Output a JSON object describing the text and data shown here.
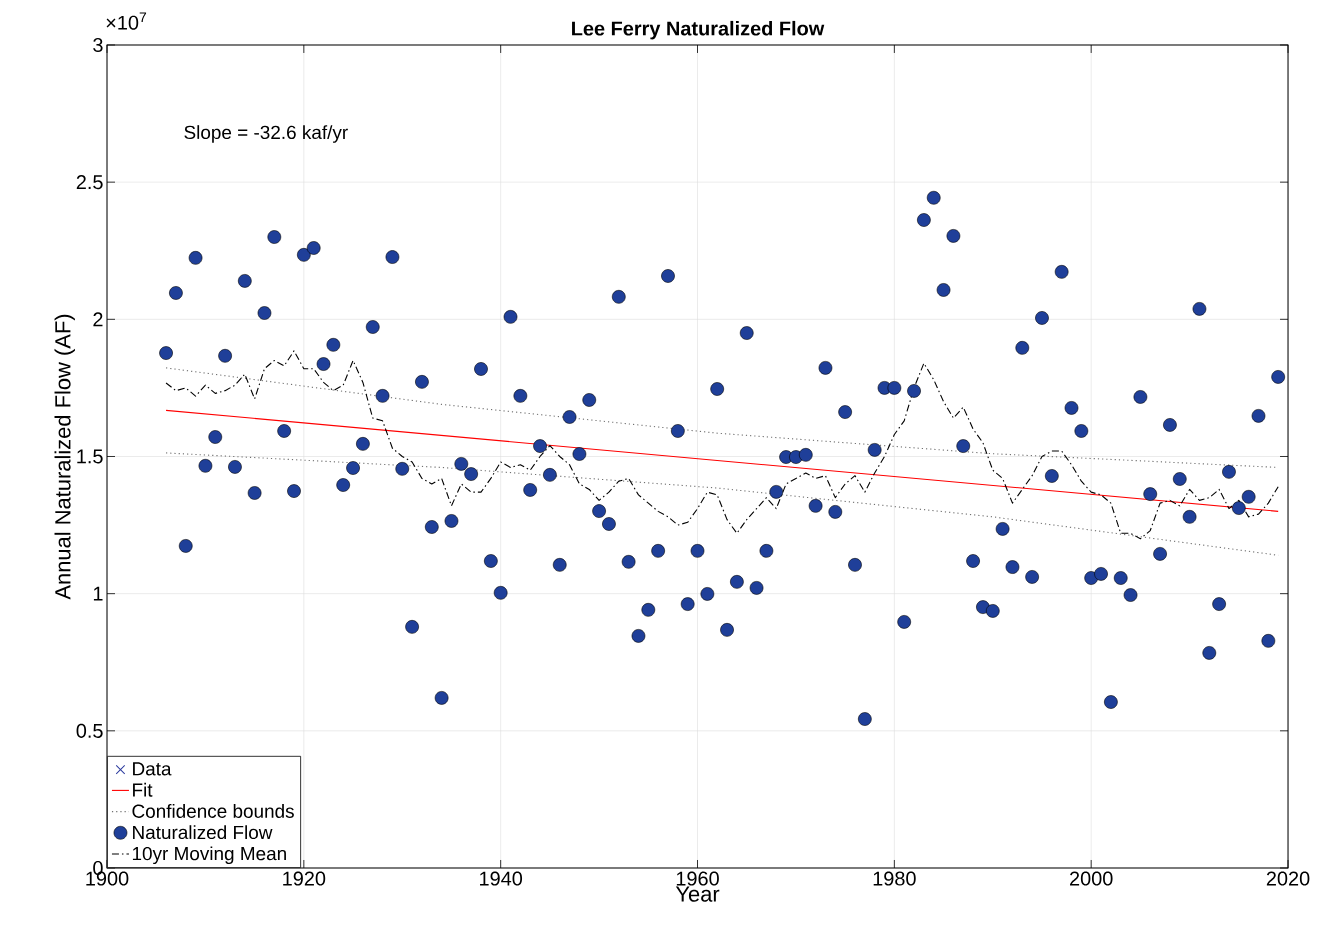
{
  "chart_data": {
    "type": "scatter",
    "title": "Lee Ferry Naturalized Flow",
    "xlabel": "Year",
    "ylabel": "Annual Naturalized Flow (AF)",
    "annotations": [
      "Slope = -32.6 kaf/yr",
      "×10$^{7}$"
    ],
    "x": [
      1906,
      1907,
      1908,
      1909,
      1910,
      1911,
      1912,
      1913,
      1914,
      1915,
      1916,
      1917,
      1918,
      1919,
      1920,
      1921,
      1922,
      1923,
      1924,
      1925,
      1926,
      1927,
      1928,
      1929,
      1930,
      1931,
      1932,
      1933,
      1934,
      1935,
      1936,
      1937,
      1938,
      1939,
      1940,
      1941,
      1942,
      1943,
      1944,
      1945,
      1946,
      1947,
      1948,
      1949,
      1950,
      1951,
      1952,
      1953,
      1954,
      1955,
      1956,
      1957,
      1958,
      1959,
      1960,
      1961,
      1962,
      1963,
      1964,
      1965,
      1966,
      1967,
      1968,
      1969,
      1970,
      1971,
      1972,
      1973,
      1974,
      1975,
      1976,
      1977,
      1978,
      1979,
      1980,
      1981,
      1982,
      1983,
      1984,
      1985,
      1986,
      1987,
      1988,
      1989,
      1990,
      1991,
      1992,
      1993,
      1994,
      1995,
      1996,
      1997,
      1998,
      1999,
      2000,
      2001,
      2002,
      2003,
      2004,
      2005,
      2006,
      2007,
      2008,
      2009,
      2010,
      2011,
      2012,
      2013,
      2014,
      2015,
      2016,
      2017,
      2018,
      2019
    ],
    "series": [
      {
        "name": "Data",
        "type": "scatter",
        "marker": "cross",
        "color": "#2b3a9e",
        "values": [
          null,
          null,
          null,
          null,
          null,
          null,
          null,
          null,
          null,
          null,
          null,
          null,
          null,
          null,
          null,
          null,
          null,
          null,
          null,
          null,
          null,
          null,
          null,
          null,
          null,
          null,
          null,
          null,
          null,
          null,
          null,
          null,
          null,
          null,
          null,
          null,
          null,
          null,
          null,
          null,
          null,
          null,
          null,
          null,
          null,
          null,
          null,
          null,
          null,
          null,
          null,
          null,
          null,
          null,
          null,
          null,
          null,
          null,
          null,
          null,
          null,
          null,
          null,
          null,
          null,
          null,
          null,
          null,
          null,
          null,
          null,
          null,
          null,
          null,
          null,
          null,
          null,
          null,
          null,
          null,
          null,
          null,
          null,
          null,
          null,
          null,
          null,
          null,
          null,
          null,
          null,
          null,
          null,
          null,
          null,
          null,
          null,
          null,
          null,
          null,
          null,
          null,
          null,
          null,
          null,
          null,
          null,
          null,
          null,
          null,
          null,
          null,
          null,
          null
        ]
      },
      {
        "name": "Fit",
        "type": "line",
        "marker": "none",
        "color": "#ff0000",
        "x": [
          1906,
          2019
        ],
        "values": [
          1.668,
          1.3
        ]
      },
      {
        "name": "Confidence bounds",
        "type": "line",
        "marker": "none",
        "line_style": "dotted",
        "color": "#707070",
        "x": [
          1906,
          1934,
          1962,
          1990,
          2019
        ],
        "values": [
          1.823,
          1.69,
          1.585,
          1.51,
          1.46
        ]
      },
      {
        "type": "line",
        "marker": "none",
        "line_style": "dotted",
        "color": "#707070",
        "x": [
          1906,
          1934,
          1962,
          1990,
          2019
        ],
        "values": [
          1.513,
          1.46,
          1.385,
          1.28,
          1.14
        ]
      },
      {
        "name": "Naturalized Flow",
        "marker": "circle",
        "color": "#1f3f99",
        "values": [
          1.877,
          2.096,
          1.174,
          2.224,
          1.466,
          1.571,
          1.867,
          1.462,
          2.14,
          1.367,
          2.023,
          2.3,
          1.593,
          1.374,
          2.235,
          2.26,
          1.837,
          1.907,
          1.396,
          1.458,
          1.546,
          1.972,
          1.721,
          2.227,
          1.455,
          0.879,
          1.772,
          1.243,
          0.62,
          1.265,
          1.473,
          1.436,
          1.819,
          1.119,
          1.003,
          2.009,
          1.721,
          1.378,
          1.538,
          1.433,
          1.105,
          1.644,
          1.509,
          1.706,
          1.301,
          1.254,
          2.082,
          1.116,
          0.846,
          0.941,
          1.156,
          2.158,
          1.593,
          0.962,
          1.156,
          0.999,
          1.746,
          0.868,
          1.043,
          1.95,
          1.021,
          1.156,
          1.371,
          1.498,
          1.498,
          1.506,
          1.32,
          1.823,
          1.298,
          1.662,
          1.105,
          0.543,
          1.524,
          1.75,
          1.75,
          0.897,
          1.739,
          2.362,
          2.443,
          2.107,
          2.304,
          1.538,
          1.119,
          0.951,
          0.937,
          1.236,
          1.097,
          1.896,
          1.061,
          2.005,
          1.429,
          2.173,
          1.677,
          1.593,
          1.057,
          1.072,
          0.605,
          1.057,
          0.995,
          1.717,
          1.363,
          1.145,
          1.615,
          1.418,
          1.28,
          2.038,
          0.784,
          0.962,
          1.444,
          1.312,
          1.353,
          1.648,
          0.828,
          1.79
        ]
      },
      {
        "name": "10yr Moving Mean",
        "type": "line",
        "marker": "none",
        "line_style": "dashdot",
        "color": "#000000",
        "values": [
          1.768,
          1.74,
          1.75,
          1.72,
          1.76,
          1.73,
          1.74,
          1.76,
          1.8,
          1.71,
          1.82,
          1.85,
          1.83,
          1.885,
          1.82,
          1.82,
          1.77,
          1.74,
          1.76,
          1.85,
          1.77,
          1.64,
          1.63,
          1.53,
          1.5,
          1.48,
          1.42,
          1.4,
          1.42,
          1.32,
          1.4,
          1.37,
          1.37,
          1.42,
          1.48,
          1.46,
          1.47,
          1.45,
          1.5,
          1.54,
          1.5,
          1.47,
          1.4,
          1.38,
          1.34,
          1.37,
          1.41,
          1.42,
          1.36,
          1.33,
          1.3,
          1.28,
          1.25,
          1.26,
          1.31,
          1.37,
          1.36,
          1.27,
          1.22,
          1.27,
          1.31,
          1.35,
          1.31,
          1.4,
          1.42,
          1.44,
          1.42,
          1.43,
          1.35,
          1.4,
          1.43,
          1.37,
          1.44,
          1.5,
          1.58,
          1.63,
          1.75,
          1.84,
          1.78,
          1.7,
          1.64,
          1.68,
          1.6,
          1.55,
          1.45,
          1.42,
          1.33,
          1.38,
          1.43,
          1.5,
          1.52,
          1.52,
          1.47,
          1.41,
          1.37,
          1.36,
          1.33,
          1.22,
          1.22,
          1.2,
          1.23,
          1.33,
          1.34,
          1.32,
          1.38,
          1.34,
          1.35,
          1.38,
          1.31,
          1.34,
          1.28,
          1.29,
          1.33,
          1.39
        ]
      }
    ],
    "xlim": [
      1900,
      2020
    ],
    "xticks": [
      1900,
      1920,
      1940,
      1960,
      1980,
      2000,
      2020
    ],
    "ylim": [
      0,
      3
    ],
    "yticks": [
      0,
      0.5,
      1,
      1.5,
      2,
      2.5,
      3
    ],
    "grid": true,
    "legend": "bottom left"
  }
}
